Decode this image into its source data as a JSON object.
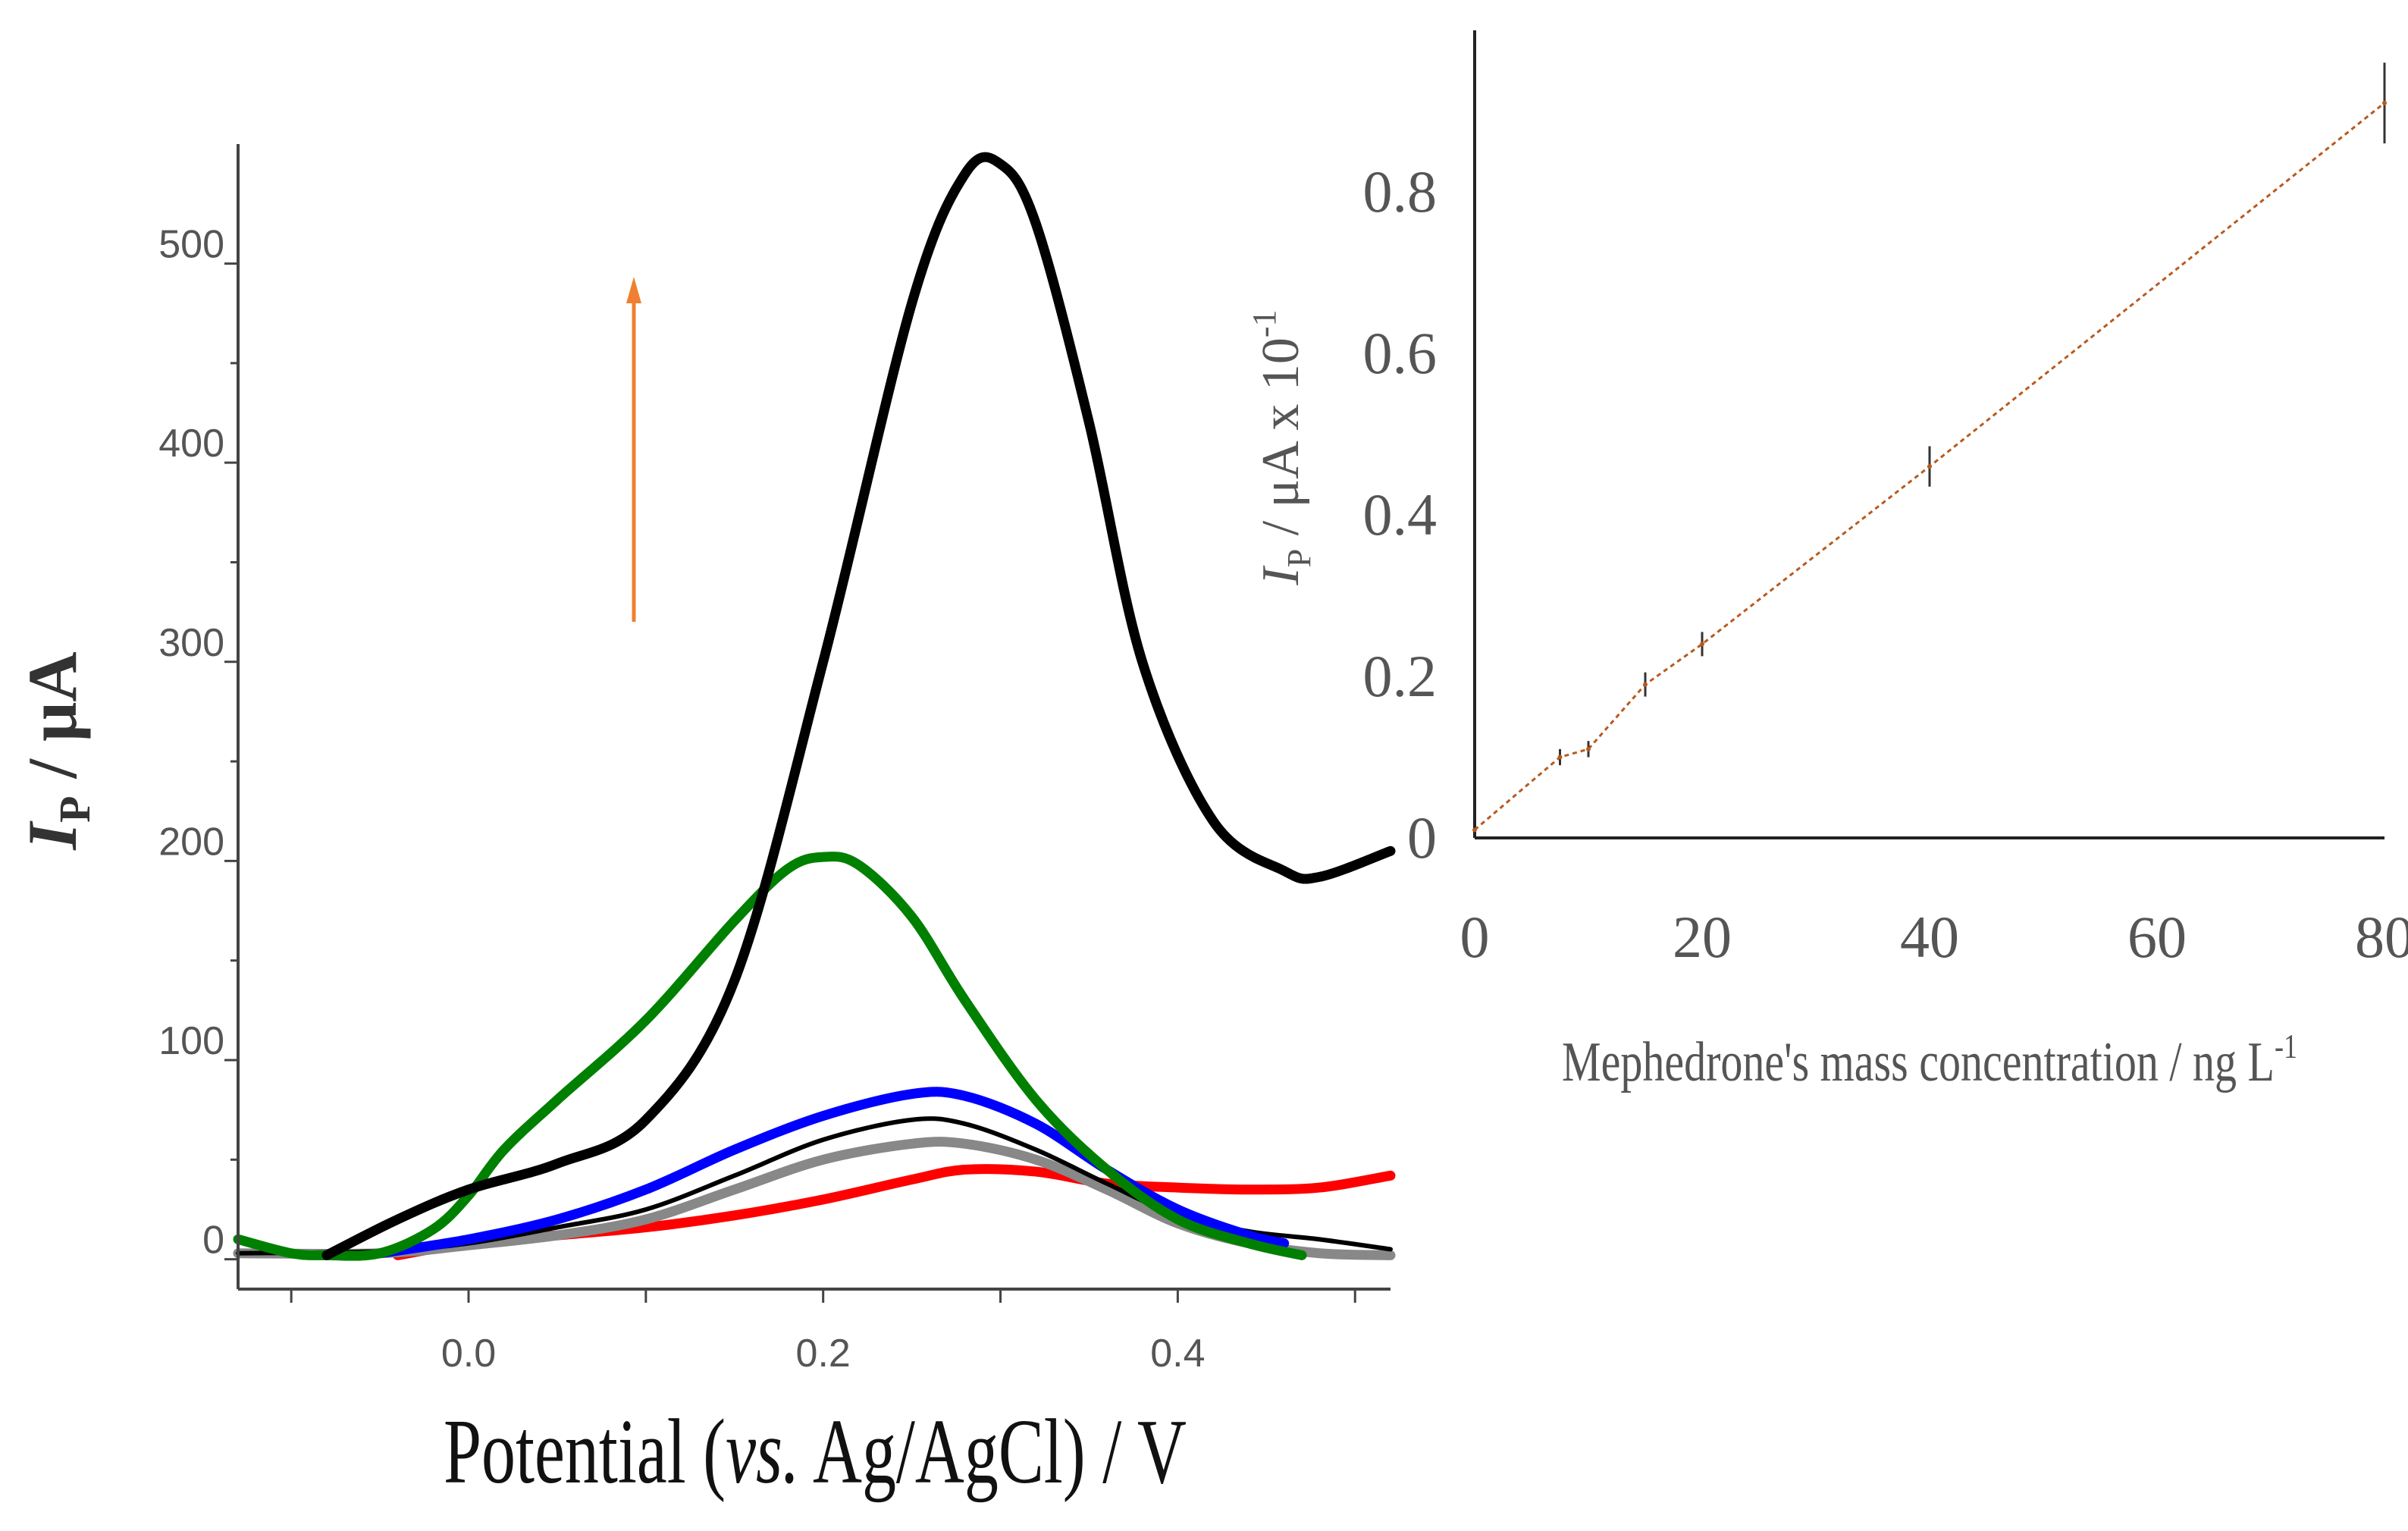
{
  "chart_data": [
    {
      "type": "line",
      "title": "",
      "xlabel_parts": [
        "Potential (",
        "vs.",
        " Ag/AgCl) / V"
      ],
      "ylabel_parts": [
        "I",
        "P",
        " / μA"
      ],
      "xlim": [
        -0.13,
        0.52
      ],
      "ylim": [
        -15,
        560
      ],
      "x_ticks": [
        "0.0",
        "0.2",
        "0.4"
      ],
      "x_tick_values": [
        0.0,
        0.2,
        0.4
      ],
      "y_ticks": [
        "0",
        "100",
        "200",
        "300",
        "400",
        "500"
      ],
      "y_tick_values": [
        0,
        100,
        200,
        300,
        400,
        500
      ],
      "grid": false,
      "annotation": "upward arrow indicating increasing concentration",
      "series": [
        {
          "name": "red",
          "color": "#ff0000",
          "x": [
            -0.04,
            0.0,
            0.05,
            0.1,
            0.15,
            0.2,
            0.25,
            0.28,
            0.32,
            0.36,
            0.4,
            0.44,
            0.48,
            0.52
          ],
          "y": [
            2,
            8,
            12,
            16,
            22,
            30,
            40,
            45,
            44,
            38,
            36,
            35,
            36,
            42
          ]
        },
        {
          "name": "gray",
          "color": "#888888",
          "x": [
            -0.13,
            -0.05,
            0.0,
            0.05,
            0.1,
            0.15,
            0.2,
            0.25,
            0.28,
            0.32,
            0.36,
            0.4,
            0.44,
            0.48,
            0.52
          ],
          "y": [
            3,
            3,
            7,
            12,
            20,
            35,
            50,
            58,
            58,
            50,
            35,
            18,
            8,
            3,
            2
          ]
        },
        {
          "name": "black-thin",
          "color": "#000000",
          "x": [
            -0.13,
            -0.05,
            0.0,
            0.05,
            0.1,
            0.15,
            0.2,
            0.25,
            0.28,
            0.32,
            0.36,
            0.4,
            0.44,
            0.48,
            0.52
          ],
          "y": [
            3,
            4,
            8,
            16,
            25,
            42,
            60,
            70,
            68,
            55,
            38,
            22,
            14,
            10,
            5
          ]
        },
        {
          "name": "blue",
          "color": "#0000ff",
          "x": [
            -0.05,
            0.0,
            0.05,
            0.1,
            0.15,
            0.2,
            0.25,
            0.28,
            0.32,
            0.36,
            0.4,
            0.44,
            0.46
          ],
          "y": [
            3,
            10,
            20,
            35,
            55,
            72,
            83,
            82,
            68,
            45,
            25,
            12,
            8
          ]
        },
        {
          "name": "green",
          "color": "#008000",
          "x": [
            -0.13,
            -0.1,
            -0.08,
            -0.05,
            -0.02,
            0.0,
            0.02,
            0.05,
            0.1,
            0.15,
            0.18,
            0.2,
            0.22,
            0.25,
            0.28,
            0.32,
            0.36,
            0.4,
            0.44,
            0.47
          ],
          "y": [
            10,
            3,
            2,
            3,
            15,
            32,
            55,
            80,
            120,
            170,
            196,
            202,
            198,
            172,
            130,
            80,
            45,
            20,
            8,
            2
          ]
        },
        {
          "name": "black-bold",
          "color": "#000000",
          "x": [
            -0.08,
            -0.04,
            0.0,
            0.05,
            0.1,
            0.15,
            0.2,
            0.25,
            0.28,
            0.3,
            0.32,
            0.35,
            0.38,
            0.42,
            0.46,
            0.48,
            0.52
          ],
          "y": [
            2,
            20,
            35,
            48,
            70,
            140,
            300,
            480,
            545,
            550,
            520,
            420,
            300,
            220,
            195,
            192,
            205
          ]
        }
      ]
    },
    {
      "type": "line",
      "title": "",
      "xlabel": "Mephedrone's mass concentration / ng L",
      "xlabel_sup": "-1",
      "ylabel_parts": [
        "I",
        "P",
        " / μA x 10",
        "-1"
      ],
      "xlim": [
        0,
        80
      ],
      "ylim": [
        0,
        1.0
      ],
      "x_ticks": [
        "0",
        "20",
        "40",
        "60",
        "80"
      ],
      "x_tick_values": [
        0,
        20,
        40,
        60,
        80
      ],
      "y_ticks": [
        "0",
        "0.2",
        "0.4",
        "0.6",
        "0.8"
      ],
      "y_tick_values": [
        0,
        0.2,
        0.4,
        0.6,
        0.8
      ],
      "grid": false,
      "series": [
        {
          "name": "calibration",
          "color": "#b85a1e",
          "x": [
            0,
            7.5,
            10,
            15,
            20,
            40,
            80
          ],
          "y": [
            0.01,
            0.1,
            0.11,
            0.19,
            0.24,
            0.46,
            0.91
          ],
          "err": [
            0,
            0.01,
            0.01,
            0.015,
            0.015,
            0.025,
            0.05
          ]
        }
      ]
    }
  ]
}
